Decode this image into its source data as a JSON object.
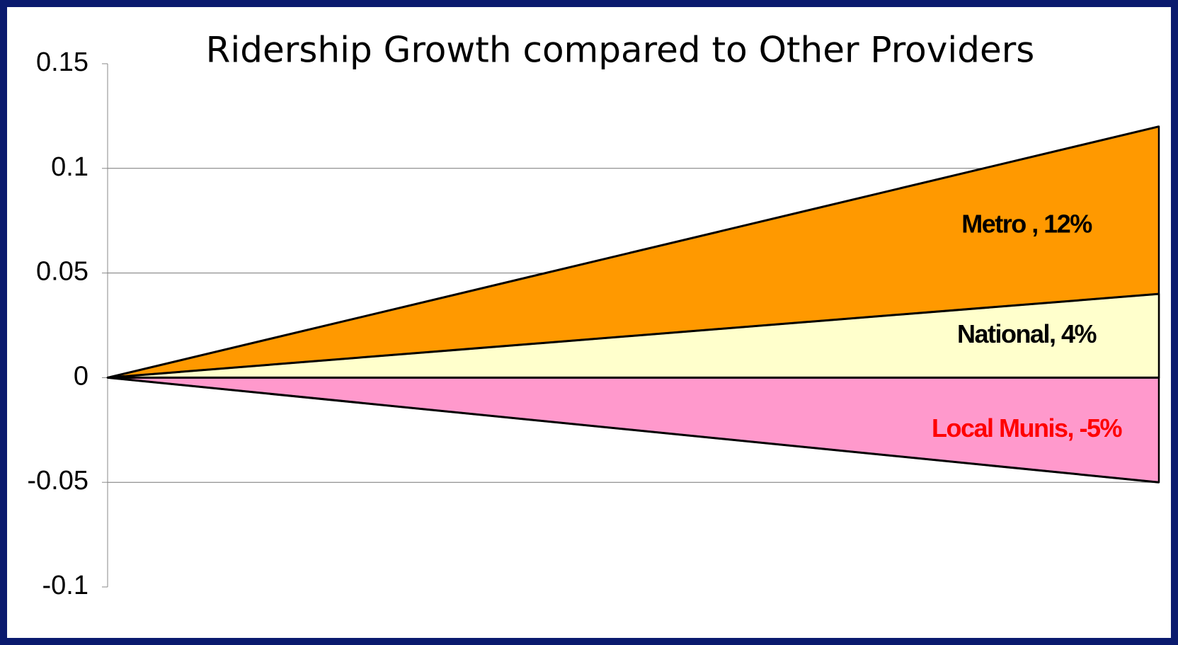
{
  "chart_data": {
    "type": "area",
    "title": "Ridership Growth compared to Other Providers",
    "categories": [
      null,
      null
    ],
    "series": [
      {
        "label": "Metro , 12%",
        "color": "#ff9900",
        "label_color": "#000000",
        "values": [
          0,
          0.12
        ]
      },
      {
        "label": "National, 4%",
        "color": "#ffffcc",
        "label_color": "#000000",
        "values": [
          0,
          0.04
        ]
      },
      {
        "label": "Local Munis, -5%",
        "color": "#ff99cc",
        "label_color": "#ff0000",
        "values": [
          0,
          -0.05
        ]
      }
    ],
    "ylim": [
      -0.1,
      0.15
    ],
    "yticks": [
      0.15,
      0.1,
      0.05,
      0,
      -0.05,
      -0.1
    ],
    "grid": true
  }
}
